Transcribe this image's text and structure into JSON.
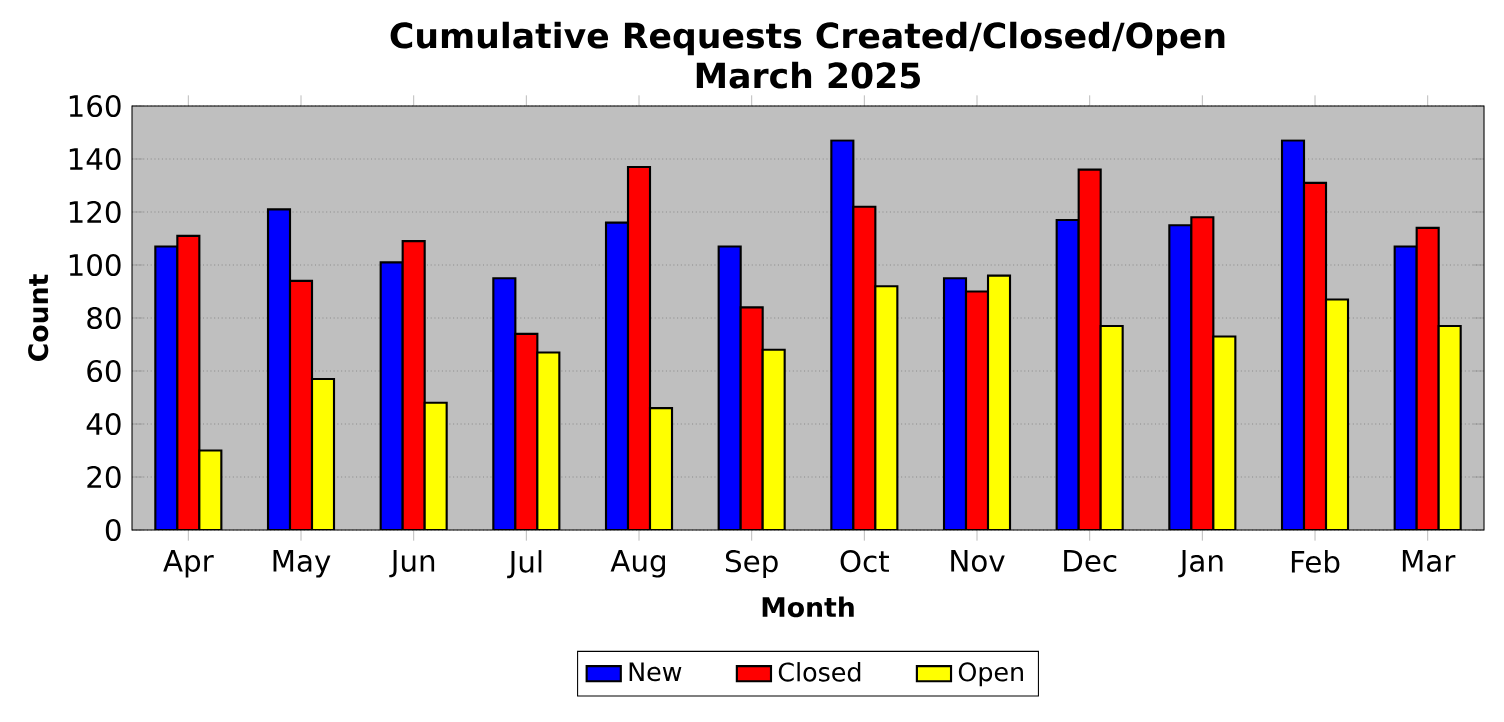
{
  "chart_data": {
    "type": "bar",
    "title": "Cumulative Requests Created/Closed/Open\nMarch 2025",
    "xlabel": "Month",
    "ylabel": "Count",
    "categories": [
      "Apr",
      "May",
      "Jun",
      "Jul",
      "Aug",
      "Sep",
      "Oct",
      "Nov",
      "Dec",
      "Jan",
      "Feb",
      "Mar"
    ],
    "series": [
      {
        "name": "New",
        "color": "#0000ff",
        "values": [
          107,
          121,
          101,
          95,
          116,
          107,
          147,
          95,
          117,
          115,
          147,
          107
        ]
      },
      {
        "name": "Closed",
        "color": "#ff0000",
        "values": [
          111,
          94,
          109,
          74,
          137,
          84,
          122,
          90,
          136,
          118,
          131,
          114
        ]
      },
      {
        "name": "Open",
        "color": "#ffff00",
        "values": [
          30,
          57,
          48,
          67,
          46,
          68,
          92,
          96,
          77,
          73,
          87,
          77
        ]
      }
    ],
    "ylim": [
      0,
      160
    ],
    "yticks": [
      0,
      20,
      40,
      60,
      80,
      100,
      120,
      140,
      160
    ],
    "grid": "y",
    "legend": "bottom"
  }
}
